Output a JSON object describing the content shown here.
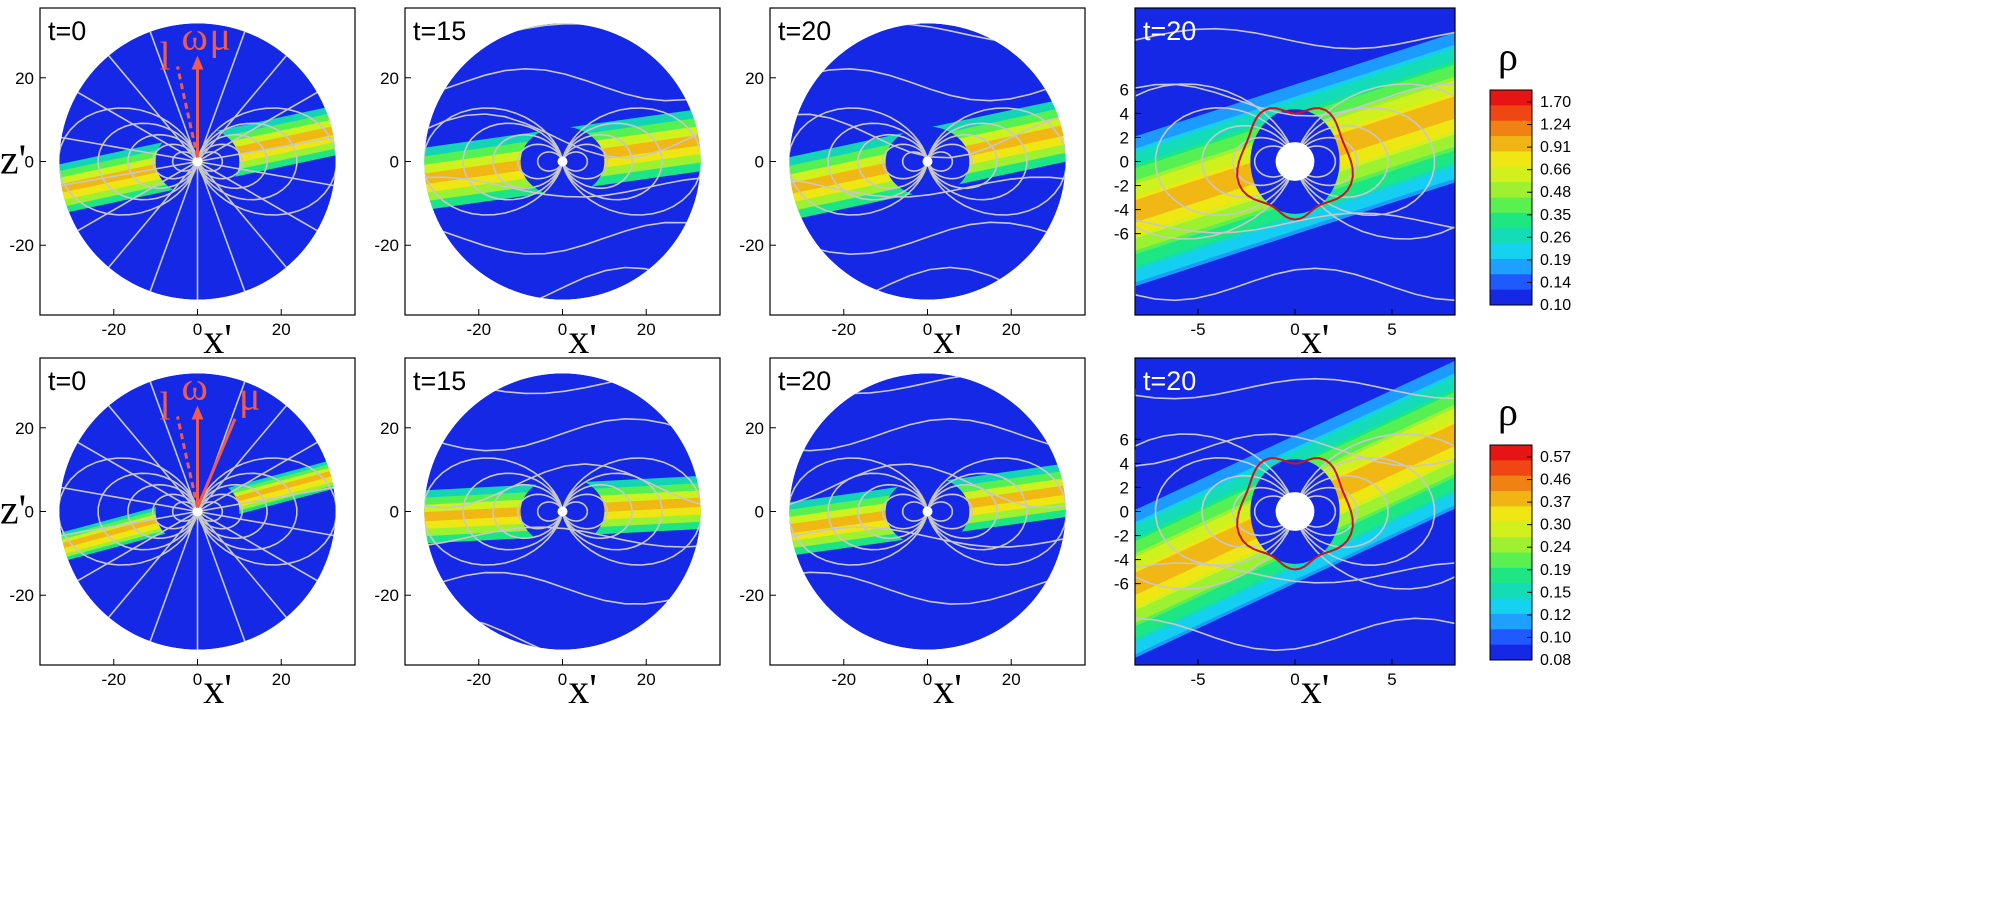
{
  "panels": [
    {
      "id": "r1c1",
      "time_label": "t=0",
      "xlabel": "x'",
      "ylabel": "z'",
      "kind": "sphere",
      "theta": 12,
      "width": 5.0,
      "x_ticks": [
        "-20",
        "0",
        "20"
      ],
      "y_ticks": [
        "20",
        "0",
        "-20"
      ],
      "vectors": {
        "l": "l",
        "omega": "ω",
        "mu": "μ"
      }
    },
    {
      "id": "r1c2",
      "time_label": "t=15",
      "xlabel": "x'",
      "kind": "sphere",
      "theta": 8,
      "width": 6.5,
      "x_ticks": [
        "-20",
        "0",
        "20"
      ],
      "y_ticks": [
        "20",
        "0",
        "-20"
      ]
    },
    {
      "id": "r1c3",
      "time_label": "t=20",
      "xlabel": "x'",
      "kind": "sphere",
      "theta": 12,
      "width": 6.5,
      "x_ticks": [
        "-20",
        "0",
        "20"
      ],
      "y_ticks": [
        "20",
        "0",
        "-20"
      ]
    },
    {
      "id": "r1c4",
      "time_label": "t=20",
      "xlabel": "x'",
      "kind": "zoom",
      "theta": 18,
      "width": 3.2,
      "x_ticks": [
        "-5",
        "0",
        "5"
      ],
      "y_ticks": [
        "6",
        "4",
        "2",
        "0",
        "-2",
        "-4",
        "-6"
      ]
    },
    {
      "id": "r2c1",
      "time_label": "t=0",
      "xlabel": "x'",
      "ylabel": "z'",
      "kind": "sphere",
      "theta": 15,
      "width": 2.6,
      "x_ticks": [
        "-20",
        "0",
        "20"
      ],
      "y_ticks": [
        "20",
        "0",
        "-20"
      ],
      "vectors": {
        "l": "l",
        "omega": "ω",
        "mu": "μ"
      }
    },
    {
      "id": "r2c2",
      "time_label": "t=15",
      "xlabel": "x'",
      "kind": "sphere",
      "theta": 3,
      "width": 5.5,
      "x_ticks": [
        "-20",
        "0",
        "20"
      ],
      "y_ticks": [
        "20",
        "0",
        "-20"
      ]
    },
    {
      "id": "r2c3",
      "time_label": "t=20",
      "xlabel": "x'",
      "kind": "sphere",
      "theta": 8,
      "width": 5.5,
      "x_ticks": [
        "-20",
        "0",
        "20"
      ],
      "y_ticks": [
        "20",
        "0",
        "-20"
      ]
    },
    {
      "id": "r2c4",
      "time_label": "t=20",
      "xlabel": "x'",
      "kind": "zoom",
      "theta": 25,
      "width": 3.0,
      "x_ticks": [
        "-5",
        "0",
        "5"
      ],
      "y_ticks": [
        "6",
        "4",
        "2",
        "0",
        "-2",
        "-4",
        "-6"
      ]
    }
  ],
  "colorbars": [
    {
      "label": "ρ",
      "values": [
        "1.70",
        "1.24",
        "0.91",
        "0.66",
        "0.48",
        "0.35",
        "0.26",
        "0.19",
        "0.14",
        "0.10"
      ]
    },
    {
      "label": "ρ",
      "values": [
        "0.57",
        "0.46",
        "0.37",
        "0.30",
        "0.24",
        "0.19",
        "0.15",
        "0.12",
        "0.10",
        "0.08"
      ]
    }
  ],
  "colors": {
    "background": "#1428e6",
    "field_lines": "#c8c8c8",
    "vectors": "#f05a50",
    "contour": "#c8141e",
    "scale": [
      "#1428e6",
      "#1e5aff",
      "#1ea0ff",
      "#14d2f0",
      "#14dcb4",
      "#1ee682",
      "#5af050",
      "#a0f032",
      "#d2f01e",
      "#f0e614",
      "#f0b414",
      "#f08214",
      "#f04614",
      "#e61414"
    ]
  }
}
